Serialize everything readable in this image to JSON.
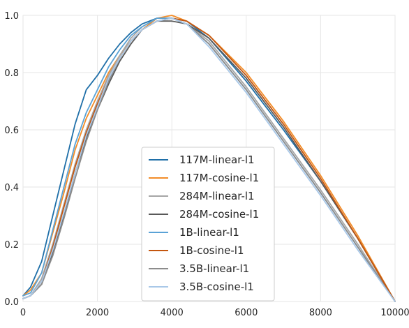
{
  "chart_data": {
    "type": "line",
    "title": "",
    "xlabel": "",
    "ylabel": "",
    "xlim": [
      0,
      10000
    ],
    "ylim": [
      0,
      1.0
    ],
    "xticks": [
      "0",
      "2000",
      "4000",
      "6000",
      "8000",
      "10000"
    ],
    "xtick_values": [
      0,
      2000,
      4000,
      6000,
      8000,
      10000
    ],
    "yticks": [
      "0.0",
      "0.2",
      "0.4",
      "0.6",
      "0.8",
      "1.0"
    ],
    "ytick_values": [
      0,
      0.2,
      0.4,
      0.6,
      0.8,
      1.0
    ],
    "grid": true,
    "legend_position": "center",
    "series": [
      {
        "name": "117M-linear-l1",
        "color": "#1f6fa8",
        "points": [
          [
            0,
            0.02
          ],
          [
            200,
            0.05
          ],
          [
            500,
            0.14
          ],
          [
            800,
            0.3
          ],
          [
            1100,
            0.46
          ],
          [
            1400,
            0.62
          ],
          [
            1700,
            0.74
          ],
          [
            2000,
            0.79
          ],
          [
            2300,
            0.85
          ],
          [
            2600,
            0.9
          ],
          [
            2900,
            0.94
          ],
          [
            3200,
            0.97
          ],
          [
            3600,
            0.99
          ],
          [
            4000,
            0.99
          ],
          [
            4400,
            0.98
          ],
          [
            5000,
            0.92
          ],
          [
            6000,
            0.77
          ],
          [
            7000,
            0.6
          ],
          [
            8000,
            0.42
          ],
          [
            9000,
            0.22
          ],
          [
            10000,
            0.0
          ]
        ]
      },
      {
        "name": "117M-cosine-l1",
        "color": "#f28c28",
        "points": [
          [
            0,
            0.02
          ],
          [
            200,
            0.04
          ],
          [
            500,
            0.1
          ],
          [
            800,
            0.24
          ],
          [
            1100,
            0.38
          ],
          [
            1400,
            0.53
          ],
          [
            1700,
            0.64
          ],
          [
            2000,
            0.72
          ],
          [
            2300,
            0.8
          ],
          [
            2600,
            0.86
          ],
          [
            2900,
            0.91
          ],
          [
            3200,
            0.95
          ],
          [
            3600,
            0.99
          ],
          [
            4000,
            1.0
          ],
          [
            4400,
            0.98
          ],
          [
            5000,
            0.93
          ],
          [
            6000,
            0.8
          ],
          [
            7000,
            0.63
          ],
          [
            8000,
            0.44
          ],
          [
            9000,
            0.23
          ],
          [
            10000,
            0.0
          ]
        ]
      },
      {
        "name": "284M-linear-l1",
        "color": "#a6a6a6",
        "points": [
          [
            0,
            0.01
          ],
          [
            200,
            0.02
          ],
          [
            500,
            0.08
          ],
          [
            800,
            0.2
          ],
          [
            1100,
            0.34
          ],
          [
            1400,
            0.48
          ],
          [
            1700,
            0.6
          ],
          [
            2000,
            0.7
          ],
          [
            2300,
            0.79
          ],
          [
            2600,
            0.86
          ],
          [
            2900,
            0.92
          ],
          [
            3200,
            0.96
          ],
          [
            3600,
            0.99
          ],
          [
            4000,
            0.99
          ],
          [
            4400,
            0.97
          ],
          [
            5000,
            0.91
          ],
          [
            6000,
            0.75
          ],
          [
            7000,
            0.57
          ],
          [
            8000,
            0.39
          ],
          [
            9000,
            0.2
          ],
          [
            10000,
            0.0
          ]
        ]
      },
      {
        "name": "284M-cosine-l1",
        "color": "#595959",
        "points": [
          [
            0,
            0.01
          ],
          [
            200,
            0.02
          ],
          [
            500,
            0.06
          ],
          [
            800,
            0.17
          ],
          [
            1100,
            0.3
          ],
          [
            1400,
            0.45
          ],
          [
            1700,
            0.57
          ],
          [
            2000,
            0.67
          ],
          [
            2300,
            0.76
          ],
          [
            2600,
            0.84
          ],
          [
            2900,
            0.9
          ],
          [
            3200,
            0.95
          ],
          [
            3600,
            0.98
          ],
          [
            4000,
            0.98
          ],
          [
            4400,
            0.97
          ],
          [
            5000,
            0.92
          ],
          [
            6000,
            0.78
          ],
          [
            7000,
            0.61
          ],
          [
            8000,
            0.42
          ],
          [
            9000,
            0.22
          ],
          [
            10000,
            0.0
          ]
        ]
      },
      {
        "name": "1B-linear-l1",
        "color": "#5aa2d6",
        "points": [
          [
            0,
            0.02
          ],
          [
            200,
            0.03
          ],
          [
            500,
            0.1
          ],
          [
            800,
            0.25
          ],
          [
            1100,
            0.4
          ],
          [
            1400,
            0.55
          ],
          [
            1700,
            0.66
          ],
          [
            2000,
            0.74
          ],
          [
            2300,
            0.82
          ],
          [
            2600,
            0.88
          ],
          [
            2900,
            0.93
          ],
          [
            3200,
            0.96
          ],
          [
            3600,
            0.99
          ],
          [
            4000,
            0.99
          ],
          [
            4400,
            0.97
          ],
          [
            5000,
            0.9
          ],
          [
            6000,
            0.74
          ],
          [
            7000,
            0.56
          ],
          [
            8000,
            0.38
          ],
          [
            9000,
            0.19
          ],
          [
            10000,
            0.0
          ]
        ]
      },
      {
        "name": "1B-cosine-l1",
        "color": "#c4560f",
        "points": [
          [
            0,
            0.01
          ],
          [
            200,
            0.02
          ],
          [
            500,
            0.07
          ],
          [
            800,
            0.19
          ],
          [
            1100,
            0.33
          ],
          [
            1400,
            0.47
          ],
          [
            1700,
            0.59
          ],
          [
            2000,
            0.69
          ],
          [
            2300,
            0.78
          ],
          [
            2600,
            0.85
          ],
          [
            2900,
            0.91
          ],
          [
            3200,
            0.95
          ],
          [
            3600,
            0.98
          ],
          [
            4000,
            0.99
          ],
          [
            4400,
            0.98
          ],
          [
            5000,
            0.93
          ],
          [
            6000,
            0.79
          ],
          [
            7000,
            0.62
          ],
          [
            8000,
            0.43
          ],
          [
            9000,
            0.22
          ],
          [
            10000,
            0.0
          ]
        ]
      },
      {
        "name": "3.5B-linear-l1",
        "color": "#8c8c8c",
        "points": [
          [
            0,
            0.01
          ],
          [
            200,
            0.02
          ],
          [
            500,
            0.06
          ],
          [
            800,
            0.16
          ],
          [
            1100,
            0.29
          ],
          [
            1400,
            0.43
          ],
          [
            1700,
            0.56
          ],
          [
            2000,
            0.67
          ],
          [
            2300,
            0.77
          ],
          [
            2600,
            0.85
          ],
          [
            2900,
            0.91
          ],
          [
            3200,
            0.95
          ],
          [
            3600,
            0.98
          ],
          [
            4000,
            0.99
          ],
          [
            4400,
            0.97
          ],
          [
            5000,
            0.9
          ],
          [
            6000,
            0.74
          ],
          [
            7000,
            0.56
          ],
          [
            8000,
            0.38
          ],
          [
            9000,
            0.19
          ],
          [
            10000,
            0.0
          ]
        ]
      },
      {
        "name": "3.5B-cosine-l1",
        "color": "#a9c8e8",
        "points": [
          [
            0,
            0.01
          ],
          [
            200,
            0.02
          ],
          [
            500,
            0.07
          ],
          [
            800,
            0.18
          ],
          [
            1100,
            0.31
          ],
          [
            1400,
            0.45
          ],
          [
            1700,
            0.58
          ],
          [
            2000,
            0.68
          ],
          [
            2300,
            0.78
          ],
          [
            2600,
            0.85
          ],
          [
            2900,
            0.91
          ],
          [
            3200,
            0.95
          ],
          [
            3600,
            0.98
          ],
          [
            4000,
            0.99
          ],
          [
            4400,
            0.97
          ],
          [
            5000,
            0.89
          ],
          [
            6000,
            0.73
          ],
          [
            7000,
            0.55
          ],
          [
            8000,
            0.37
          ],
          [
            9000,
            0.18
          ],
          [
            10000,
            0.0
          ]
        ]
      }
    ]
  }
}
